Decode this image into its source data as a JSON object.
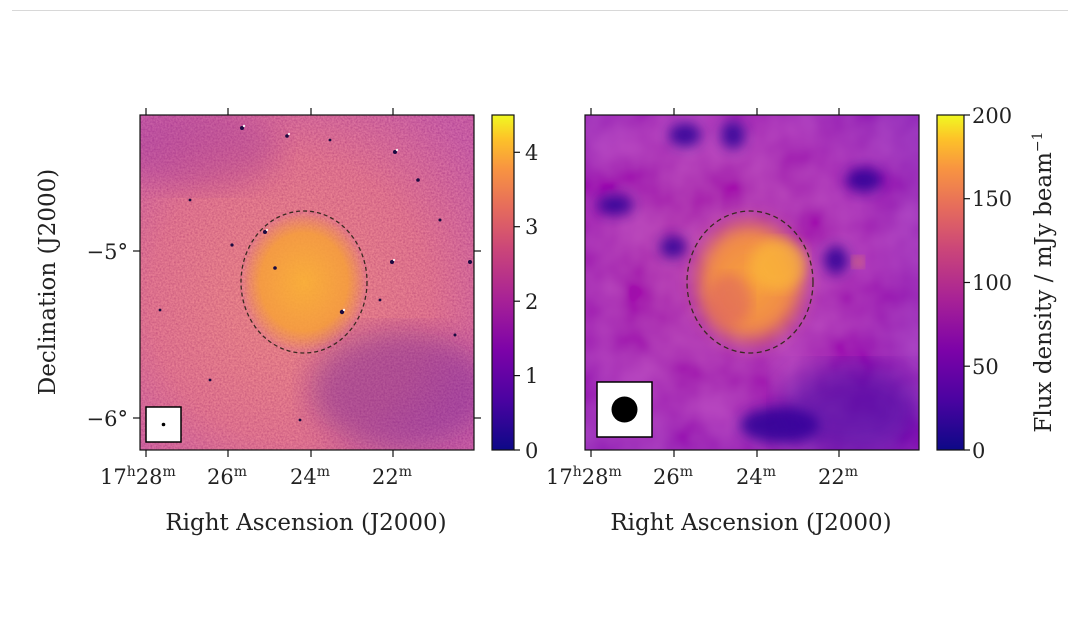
{
  "chart_data": [
    {
      "type": "heatmap",
      "panel": "left",
      "xlabel": "Right Ascension (J2000)",
      "ylabel": "Declination (J2000)",
      "x_ticks": [
        {
          "h": "17",
          "m": "28"
        },
        {
          "h": "",
          "m": "26"
        },
        {
          "h": "",
          "m": "24"
        },
        {
          "h": "",
          "m": "22"
        }
      ],
      "y_ticks": [
        {
          "label": "−5°",
          "value": -5
        },
        {
          "label": "−6°",
          "value": -6
        }
      ],
      "colorbar": {
        "colormap": "plasma",
        "range": [
          0,
          4.5
        ],
        "ticks": [
          "0",
          "1",
          "2",
          "3",
          "4"
        ],
        "label": ""
      },
      "annotations": [
        "dashed ellipse around central source",
        "beam-size inset (small dot)"
      ]
    },
    {
      "type": "heatmap",
      "panel": "right",
      "xlabel": "Right Ascension (J2000)",
      "ylabel": "",
      "x_ticks": [
        {
          "h": "17",
          "m": "28"
        },
        {
          "h": "",
          "m": "26"
        },
        {
          "h": "",
          "m": "24"
        },
        {
          "h": "",
          "m": "22"
        }
      ],
      "colorbar": {
        "colormap": "plasma",
        "range": [
          0,
          200
        ],
        "ticks": [
          "0",
          "50",
          "100",
          "150",
          "200"
        ],
        "label_main": "Flux density / mJy beam",
        "label_exp": "−1"
      },
      "annotations": [
        "dashed ellipse around central source",
        "beam-size inset (large dot)"
      ]
    }
  ],
  "colors": {
    "plasma_low": "#0d0887",
    "plasma_mid": "#cc4778",
    "plasma_high": "#f0f921",
    "ellipse": "#3a2a20"
  },
  "units": {
    "hour_sup": "h",
    "minute_sup": "m"
  }
}
